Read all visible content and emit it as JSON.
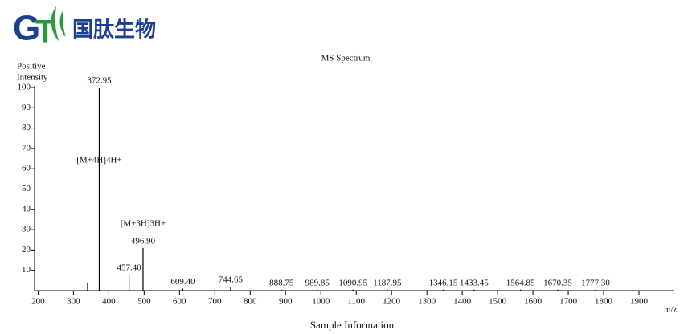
{
  "logo": {
    "letters": [
      "G",
      "T"
    ],
    "text": "国肽生物"
  },
  "chart_data": {
    "type": "stem",
    "title": "MS Spectrum",
    "ylabel": [
      "Positive",
      "Intensity"
    ],
    "xlabel": "m/z",
    "caption": "Sample Information",
    "x": [
      340,
      372.95,
      457.4,
      496.9,
      609.4,
      744.65,
      888.75,
      989.85,
      1090.95,
      1187.95,
      1346.15,
      1433.45,
      1564.85,
      1670.35,
      1777.3
    ],
    "values": [
      4,
      100,
      8,
      21,
      1,
      2,
      0.5,
      0.5,
      0.5,
      0.5,
      0.5,
      0.5,
      0.5,
      0.5,
      0.5
    ],
    "value_labels": [
      null,
      "372.95",
      "457.40",
      "496.90",
      "609.40",
      "744.65",
      "888.75",
      "989.85",
      "1090.95",
      "1187.95",
      "1346.15",
      "1433.45",
      "1564.85",
      "1670.35",
      "1777.30"
    ],
    "notes": [
      null,
      "[M+4H]4H+",
      null,
      "[M+3H]3H+",
      null,
      null,
      null,
      null,
      null,
      null,
      null,
      null,
      null,
      null,
      null
    ],
    "color": "#000000",
    "xlim": [
      190,
      2000
    ],
    "xticks": [
      200,
      300,
      400,
      500,
      600,
      700,
      800,
      900,
      1000,
      1100,
      1200,
      1300,
      1400,
      1500,
      1600,
      1700,
      1800,
      1900
    ],
    "ylim": [
      0,
      100
    ],
    "yticks": [
      10,
      20,
      30,
      40,
      50,
      60,
      70,
      80,
      90,
      100
    ]
  }
}
